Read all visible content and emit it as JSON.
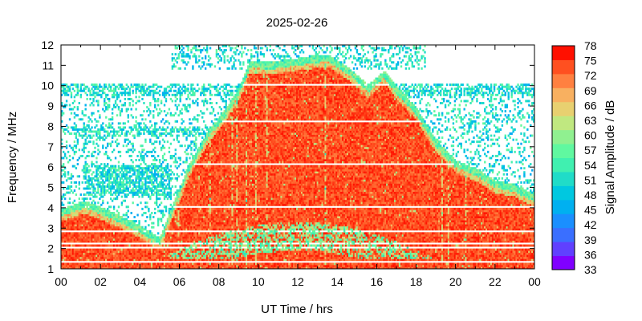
{
  "chart_data": {
    "type": "heatmap",
    "title": "2025-02-26",
    "xlabel": "UT Time / hrs",
    "ylabel": "Frequency / MHz",
    "colorbar_label": "Signal Amplitude / dB",
    "xlim": [
      0,
      24
    ],
    "ylim": [
      1,
      12
    ],
    "x_ticks": [
      "00",
      "02",
      "04",
      "06",
      "08",
      "10",
      "12",
      "14",
      "16",
      "18",
      "20",
      "22",
      "00"
    ],
    "y_ticks": [
      "1",
      "2",
      "3",
      "4",
      "5",
      "6",
      "7",
      "8",
      "9",
      "10",
      "11",
      "12"
    ],
    "colorbar_range": [
      33,
      78
    ],
    "colorbar_ticks": [
      "33",
      "36",
      "39",
      "42",
      "45",
      "48",
      "51",
      "54",
      "57",
      "60",
      "63",
      "66",
      "69",
      "72",
      "75",
      "78"
    ],
    "colorbar_colors": [
      "#8000ff",
      "#6040ff",
      "#3a6fff",
      "#1a8fff",
      "#00b0f0",
      "#00c8e0",
      "#20dcc8",
      "#40f0b0",
      "#60f8a0",
      "#90f090",
      "#c0e880",
      "#e8d070",
      "#f8b060",
      "#ff8040",
      "#ff5020",
      "#ff1000"
    ],
    "bright_region_upper_frequency_mhz": [
      [
        0,
        3.6
      ],
      [
        1.2,
        4.0
      ],
      [
        2.5,
        3.5
      ],
      [
        4.0,
        2.8
      ],
      [
        5.0,
        2.2
      ],
      [
        6.5,
        5.8
      ],
      [
        7.5,
        7.5
      ],
      [
        8.2,
        8.3
      ],
      [
        9.0,
        9.5
      ],
      [
        9.6,
        10.9
      ],
      [
        10.5,
        10.8
      ],
      [
        12.0,
        11.0
      ],
      [
        13.5,
        11.2
      ],
      [
        14.5,
        10.6
      ],
      [
        15.6,
        9.7
      ],
      [
        16.4,
        10.4
      ],
      [
        17.0,
        9.6
      ],
      [
        18.0,
        8.6
      ],
      [
        19.0,
        7.0
      ],
      [
        20.0,
        6.0
      ],
      [
        21.0,
        5.6
      ],
      [
        22.0,
        5.0
      ],
      [
        23.0,
        4.8
      ],
      [
        24.0,
        4.3
      ]
    ],
    "dropout_lines_mhz": [
      1.35,
      2.05,
      2.3,
      2.85,
      4.05,
      6.15,
      8.25,
      10.0
    ]
  }
}
